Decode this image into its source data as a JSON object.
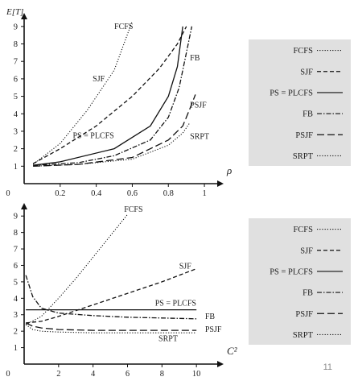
{
  "page_number": "11",
  "chart_data": [
    {
      "type": "line",
      "ylabel": "E[T]",
      "xlabel": "ρ",
      "xlim": [
        0,
        1.08
      ],
      "ylim": [
        0,
        9.5
      ],
      "x_ticks": [
        0.2,
        0.4,
        0.6,
        0.8,
        1
      ],
      "x_tick_labels": [
        "0.2",
        "0.4",
        "0.6",
        "0.8",
        "1"
      ],
      "y_ticks": [
        1,
        2,
        3,
        4,
        5,
        6,
        7,
        8,
        9
      ],
      "y_tick_labels": [
        "1",
        "2",
        "3",
        "4",
        "5",
        "6",
        "7",
        "8",
        "9"
      ],
      "origin_label": "0",
      "series": [
        {
          "name": "FCFS",
          "dash": "1.2 2",
          "x": [
            0.05,
            0.2,
            0.35,
            0.5,
            0.6
          ],
          "y": [
            1.1,
            2.3,
            4.2,
            6.5,
            9.3
          ]
        },
        {
          "name": "SJF",
          "dash": "5 3",
          "x": [
            0.05,
            0.2,
            0.4,
            0.6,
            0.75,
            0.85,
            0.9
          ],
          "y": [
            1.15,
            2.0,
            3.3,
            5.0,
            6.6,
            8.0,
            9.0
          ]
        },
        {
          "name": "PS = PLCFS",
          "dash": "",
          "x": [
            0.05,
            0.2,
            0.5,
            0.7,
            0.8,
            0.85,
            0.88
          ],
          "y": [
            1.05,
            1.25,
            2.0,
            3.3,
            5.0,
            6.7,
            9.0
          ]
        },
        {
          "name": "FB",
          "dash": "6 2 1.5 2",
          "x": [
            0.05,
            0.3,
            0.5,
            0.7,
            0.8,
            0.86,
            0.9,
            0.93
          ],
          "y": [
            1.05,
            1.2,
            1.6,
            2.5,
            3.8,
            5.5,
            7.5,
            9.0
          ]
        },
        {
          "name": "PSJF",
          "dash": "9 4",
          "x": [
            0.05,
            0.3,
            0.6,
            0.8,
            0.88,
            0.92,
            0.95
          ],
          "y": [
            1.0,
            1.1,
            1.5,
            2.5,
            3.3,
            4.3,
            5.1
          ]
        },
        {
          "name": "SRPT",
          "dash": "1.2 2",
          "x": [
            0.05,
            0.3,
            0.6,
            0.8,
            0.88,
            0.92
          ],
          "y": [
            1.0,
            1.1,
            1.4,
            2.2,
            2.9,
            3.5
          ]
        }
      ],
      "annotations": [
        {
          "text": "FCFS",
          "x": 0.5,
          "y": 8.85
        },
        {
          "text": "SJF",
          "x": 0.38,
          "y": 5.85
        },
        {
          "text": "PS = PLCFS",
          "x": 0.27,
          "y": 2.6
        },
        {
          "text": "FB",
          "x": 0.92,
          "y": 7.05
        },
        {
          "text": "PSJF",
          "x": 0.92,
          "y": 4.35
        },
        {
          "text": "SRPT",
          "x": 0.92,
          "y": 2.55
        }
      ],
      "legend": [
        "FCFS",
        "SJF",
        "PS = PLCFS",
        "FB",
        "PSJF",
        "SRPT"
      ]
    },
    {
      "type": "line",
      "xlabel": "C²",
      "ylabel": "",
      "xlim": [
        0,
        11.3
      ],
      "ylim": [
        0,
        9.5
      ],
      "x_ticks": [
        2,
        4,
        6,
        8,
        10
      ],
      "x_tick_labels": [
        "2",
        "4",
        "6",
        "8",
        "10"
      ],
      "y_ticks": [
        1,
        2,
        3,
        4,
        5,
        6,
        7,
        8,
        9
      ],
      "y_tick_labels": [
        "1",
        "2",
        "3",
        "4",
        "5",
        "6",
        "7",
        "8",
        "9"
      ],
      "origin_label": "0",
      "series": [
        {
          "name": "FCFS",
          "dash": "1.2 2",
          "x": [
            0.1,
            1,
            2,
            3,
            4,
            5,
            6
          ],
          "y": [
            2.4,
            2.9,
            4.0,
            5.2,
            6.5,
            7.8,
            9.1
          ]
        },
        {
          "name": "SJF",
          "dash": "5 3",
          "x": [
            0.1,
            1,
            2,
            4,
            6,
            8,
            10
          ],
          "y": [
            2.5,
            2.6,
            2.9,
            3.6,
            4.3,
            5.0,
            5.8
          ]
        },
        {
          "name": "PS = PLCFS",
          "dash": "",
          "x": [
            0.1,
            10
          ],
          "y": [
            3.3,
            3.3
          ]
        },
        {
          "name": "FB",
          "dash": "6 2 1.5 2",
          "x": [
            0.1,
            0.5,
            1,
            2,
            4,
            6,
            8,
            10
          ],
          "y": [
            5.4,
            4.1,
            3.4,
            3.1,
            2.95,
            2.85,
            2.8,
            2.75
          ]
        },
        {
          "name": "PSJF",
          "dash": "9 4",
          "x": [
            0.1,
            0.5,
            1,
            2,
            4,
            6,
            8,
            10
          ],
          "y": [
            2.5,
            2.3,
            2.2,
            2.1,
            2.05,
            2.05,
            2.05,
            2.05
          ]
        },
        {
          "name": "SRPT",
          "dash": "1.2 2",
          "x": [
            0.1,
            0.5,
            1,
            2,
            4,
            6,
            8,
            10
          ],
          "y": [
            2.4,
            2.1,
            2.0,
            1.95,
            1.9,
            1.9,
            1.9,
            1.9
          ]
        }
      ],
      "annotations": [
        {
          "text": "FCFS",
          "x": 5.8,
          "y": 9.25
        },
        {
          "text": "SJF",
          "x": 9.0,
          "y": 5.8
        },
        {
          "text": "PS = PLCFS",
          "x": 7.6,
          "y": 3.55
        },
        {
          "text": "FB",
          "x": 10.5,
          "y": 2.75
        },
        {
          "text": "PSJF",
          "x": 10.5,
          "y": 1.95
        },
        {
          "text": "SRPT",
          "x": 7.8,
          "y": 1.4
        }
      ],
      "legend": [
        "FCFS",
        "SJF",
        "PS = PLCFS",
        "FB",
        "PSJF",
        "SRPT"
      ]
    }
  ]
}
